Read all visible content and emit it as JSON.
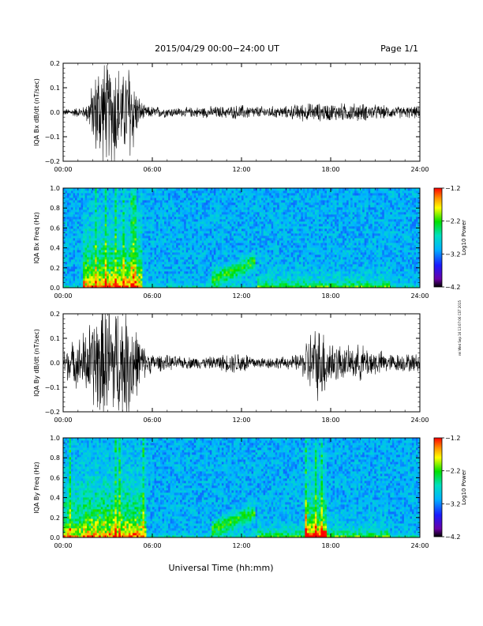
{
  "header": {
    "title": "2015/04/29  00:00−24:00 UT",
    "page": "Page 1/1"
  },
  "footer": {
    "xlabel": "Universal Time (hh:mm)",
    "side_stamp": "rei Wed Sep 16 13:07:06 CST 2015"
  },
  "chart_data": [
    {
      "type": "line",
      "ylabel": "IQA Bx dB/dt (nT/sec)",
      "xlim": [
        0,
        24
      ],
      "ylim": [
        -0.2,
        0.2
      ],
      "yticks": [
        -0.2,
        -0.1,
        0.0,
        0.1,
        0.2
      ],
      "yticklabels": [
        "−0.2",
        "−0.1",
        "0.0",
        "0.1",
        "0.2"
      ],
      "xticks": [
        0,
        6,
        12,
        18,
        24
      ],
      "xticklabels": [
        "00:00",
        "06:00",
        "12:00",
        "18:00",
        "24:00"
      ],
      "envelope": {
        "x_hours": [
          0,
          1.5,
          2,
          2.5,
          3,
          3.5,
          4,
          4.5,
          5,
          5.5,
          6,
          8,
          10,
          11,
          12,
          13,
          14,
          15,
          16,
          16.5,
          17,
          18,
          19,
          20,
          22,
          24
        ],
        "amplitude": [
          0.01,
          0.02,
          0.1,
          0.2,
          0.16,
          0.2,
          0.12,
          0.2,
          0.06,
          0.02,
          0.02,
          0.015,
          0.02,
          0.02,
          0.025,
          0.02,
          0.02,
          0.02,
          0.03,
          0.03,
          0.03,
          0.03,
          0.03,
          0.03,
          0.02,
          0.02
        ]
      }
    },
    {
      "type": "heatmap",
      "ylabel": "IQA Bx Freq (Hz)",
      "xlim": [
        0,
        24
      ],
      "ylim": [
        0,
        1.0
      ],
      "yticks": [
        0.0,
        0.2,
        0.4,
        0.6,
        0.8,
        1.0
      ],
      "yticklabels": [
        "0.0",
        "0.2",
        "0.4",
        "0.6",
        "0.8",
        "1.0"
      ],
      "xticks": [
        0,
        6,
        12,
        18,
        24
      ],
      "xticklabels": [
        "00:00",
        "06:00",
        "12:00",
        "18:00",
        "24:00"
      ],
      "colorbar": {
        "label": "Log10 Power",
        "range": [
          -4.2,
          -1.2
        ],
        "ticks": [
          -1.2,
          -2.2,
          -3.2,
          -4.2
        ],
        "ticklabels": [
          "−1.2",
          "−2.2",
          "−3.2",
          "−4.2"
        ]
      }
    },
    {
      "type": "line",
      "ylabel": "IQA By dB/dt (nT/sec)",
      "xlim": [
        0,
        24
      ],
      "ylim": [
        -0.2,
        0.2
      ],
      "yticks": [
        -0.2,
        -0.1,
        0.0,
        0.1,
        0.2
      ],
      "yticklabels": [
        "−0.2",
        "−0.1",
        "0.0",
        "0.1",
        "0.2"
      ],
      "xticks": [
        0,
        6,
        12,
        18,
        24
      ],
      "xticklabels": [
        "00:00",
        "06:00",
        "12:00",
        "18:00",
        "24:00"
      ],
      "envelope": {
        "x_hours": [
          0,
          1,
          2,
          2.5,
          3,
          3.5,
          4,
          4.5,
          5,
          5.5,
          6,
          8,
          10,
          11,
          12,
          13,
          14,
          15,
          16,
          16.5,
          17,
          17.5,
          18,
          19,
          20,
          22,
          24
        ],
        "amplitude": [
          0.05,
          0.08,
          0.15,
          0.2,
          0.2,
          0.2,
          0.18,
          0.2,
          0.1,
          0.05,
          0.03,
          0.02,
          0.02,
          0.03,
          0.04,
          0.02,
          0.02,
          0.02,
          0.03,
          0.1,
          0.12,
          0.12,
          0.08,
          0.05,
          0.06,
          0.03,
          0.03
        ]
      }
    },
    {
      "type": "heatmap",
      "ylabel": "IQA By Freq (Hz)",
      "xlim": [
        0,
        24
      ],
      "ylim": [
        0,
        1.0
      ],
      "yticks": [
        0.0,
        0.2,
        0.4,
        0.6,
        0.8,
        1.0
      ],
      "yticklabels": [
        "0.0",
        "0.2",
        "0.4",
        "0.6",
        "0.8",
        "1.0"
      ],
      "xticks": [
        0,
        6,
        12,
        18,
        24
      ],
      "xticklabels": [
        "00:00",
        "06:00",
        "12:00",
        "18:00",
        "24:00"
      ],
      "colorbar": {
        "label": "Log10 Power",
        "range": [
          -4.2,
          -1.2
        ],
        "ticks": [
          -1.2,
          -2.2,
          -3.2,
          -4.2
        ],
        "ticklabels": [
          "−1.2",
          "−2.2",
          "−3.2",
          "−4.2"
        ]
      }
    }
  ]
}
